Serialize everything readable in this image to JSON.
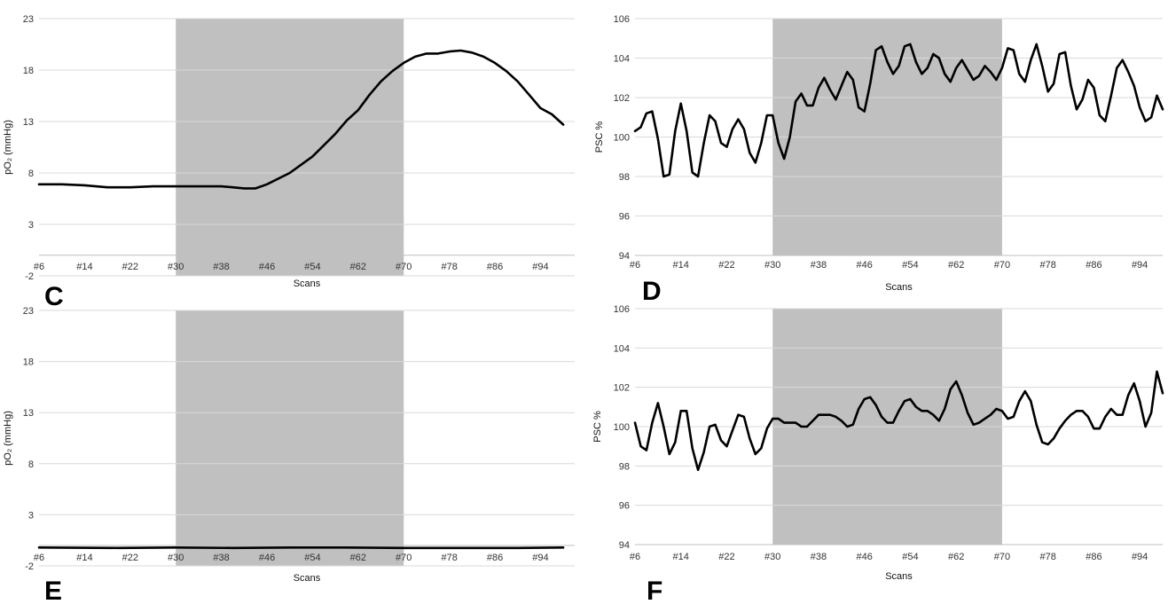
{
  "colors": {
    "shade": "#c0c0c0",
    "grid": "#d9d9d9",
    "line": "#000000",
    "background": "#ffffff"
  },
  "chart_data": [
    {
      "panel": "C",
      "type": "line",
      "grid": true,
      "legend": "none",
      "xlabel": "Scans",
      "ylabel": "pO₂ (mmHg)",
      "ylim": [
        -2,
        23
      ],
      "yticks": [
        -2,
        3,
        8,
        13,
        18,
        23
      ],
      "xlim": [
        6,
        100
      ],
      "xticks": [
        "#6",
        "#14",
        "#22",
        "#30",
        "#38",
        "#46",
        "#54",
        "#62",
        "#70",
        "#78",
        "#86",
        "#94"
      ],
      "shaded_x_range": [
        30,
        70
      ],
      "series": [
        {
          "x": [
            6,
            10,
            14,
            18,
            22,
            26,
            30,
            34,
            38,
            40,
            42,
            44,
            46,
            50,
            54,
            58,
            60,
            62,
            64,
            66,
            68,
            70,
            72,
            74,
            76,
            78,
            80,
            82,
            84,
            86,
            88,
            90,
            92,
            94,
            96,
            98
          ],
          "values": [
            6.9,
            6.9,
            6.8,
            6.6,
            6.6,
            6.7,
            6.7,
            6.7,
            6.7,
            6.6,
            6.5,
            6.5,
            6.9,
            8.0,
            9.6,
            11.8,
            13.1,
            14.1,
            15.6,
            16.9,
            17.9,
            18.7,
            19.3,
            19.6,
            19.6,
            19.8,
            19.9,
            19.7,
            19.3,
            18.7,
            17.9,
            16.9,
            15.6,
            14.3,
            13.7,
            12.7
          ]
        }
      ]
    },
    {
      "panel": "D",
      "type": "line",
      "grid": true,
      "legend": "none",
      "xlabel": "Scans",
      "ylabel": "PSC %",
      "ylim": [
        94,
        106
      ],
      "yticks": [
        94,
        96,
        98,
        100,
        102,
        104,
        106
      ],
      "xlim": [
        6,
        98
      ],
      "xticks": [
        "#6",
        "#14",
        "#22",
        "#30",
        "#38",
        "#46",
        "#54",
        "#62",
        "#70",
        "#78",
        "#86",
        "#94"
      ],
      "shaded_x_range": [
        30,
        70
      ],
      "series": [
        {
          "x": [
            6,
            7,
            8,
            9,
            10,
            11,
            12,
            13,
            14,
            15,
            16,
            17,
            18,
            19,
            20,
            21,
            22,
            23,
            24,
            25,
            26,
            27,
            28,
            29,
            30,
            31,
            32,
            33,
            34,
            35,
            36,
            37,
            38,
            39,
            40,
            41,
            42,
            43,
            44,
            45,
            46,
            47,
            48,
            49,
            50,
            51,
            52,
            53,
            54,
            55,
            56,
            57,
            58,
            59,
            60,
            61,
            62,
            63,
            64,
            65,
            66,
            67,
            68,
            69,
            70,
            71,
            72,
            73,
            74,
            75,
            76,
            77,
            78,
            79,
            80,
            81,
            82,
            83,
            84,
            85,
            86,
            87,
            88,
            89,
            90,
            91,
            92,
            93,
            94,
            95,
            96,
            97,
            98
          ],
          "values": [
            100.3,
            100.5,
            101.2,
            101.3,
            99.9,
            98.0,
            98.1,
            100.3,
            101.7,
            100.3,
            98.2,
            98.0,
            99.7,
            101.1,
            100.8,
            99.7,
            99.5,
            100.4,
            100.9,
            100.4,
            99.2,
            98.7,
            99.7,
            101.1,
            101.1,
            99.7,
            98.9,
            100.0,
            101.8,
            102.2,
            101.6,
            101.6,
            102.5,
            103.0,
            102.4,
            101.9,
            102.6,
            103.3,
            102.9,
            101.5,
            101.3,
            102.7,
            104.4,
            104.6,
            103.8,
            103.2,
            103.6,
            104.6,
            104.7,
            103.8,
            103.2,
            103.5,
            104.2,
            104.0,
            103.2,
            102.8,
            103.5,
            103.9,
            103.4,
            102.9,
            103.1,
            103.6,
            103.3,
            102.9,
            103.5,
            104.5,
            104.4,
            103.2,
            102.8,
            103.9,
            104.7,
            103.6,
            102.3,
            102.7,
            104.2,
            104.3,
            102.6,
            101.4,
            101.9,
            102.9,
            102.5,
            101.1,
            100.8,
            102.1,
            103.5,
            103.9,
            103.3,
            102.6,
            101.5,
            100.8,
            101.0,
            102.1,
            101.4
          ]
        }
      ]
    },
    {
      "panel": "E",
      "type": "line",
      "grid": true,
      "legend": "none",
      "xlabel": "Scans",
      "ylabel": "pO₂ (mmHg)",
      "ylim": [
        -2,
        23
      ],
      "yticks": [
        -2,
        3,
        8,
        13,
        18,
        23
      ],
      "xlim": [
        6,
        100
      ],
      "xticks": [
        "#6",
        "#14",
        "#22",
        "#30",
        "#38",
        "#46",
        "#54",
        "#62",
        "#70",
        "#78",
        "#86",
        "#94"
      ],
      "shaded_x_range": [
        30,
        70
      ],
      "series": [
        {
          "x": [
            6,
            20,
            30,
            40,
            50,
            60,
            70,
            80,
            90,
            98
          ],
          "values": [
            -0.2,
            -0.25,
            -0.2,
            -0.25,
            -0.2,
            -0.2,
            -0.25,
            -0.25,
            -0.25,
            -0.2
          ]
        }
      ]
    },
    {
      "panel": "F",
      "type": "line",
      "grid": true,
      "legend": "none",
      "xlabel": "Scans",
      "ylabel": "PSC %",
      "ylim": [
        94,
        106
      ],
      "yticks": [
        94,
        96,
        98,
        100,
        102,
        104,
        106
      ],
      "xlim": [
        6,
        98
      ],
      "xticks": [
        "#6",
        "#14",
        "#22",
        "#30",
        "#38",
        "#46",
        "#54",
        "#62",
        "#70",
        "#78",
        "#86",
        "#94"
      ],
      "shaded_x_range": [
        30,
        70
      ],
      "series": [
        {
          "x": [
            6,
            7,
            8,
            9,
            10,
            11,
            12,
            13,
            14,
            15,
            16,
            17,
            18,
            19,
            20,
            21,
            22,
            23,
            24,
            25,
            26,
            27,
            28,
            29,
            30,
            31,
            32,
            33,
            34,
            35,
            36,
            37,
            38,
            39,
            40,
            41,
            42,
            43,
            44,
            45,
            46,
            47,
            48,
            49,
            50,
            51,
            52,
            53,
            54,
            55,
            56,
            57,
            58,
            59,
            60,
            61,
            62,
            63,
            64,
            65,
            66,
            67,
            68,
            69,
            70,
            71,
            72,
            73,
            74,
            75,
            76,
            77,
            78,
            79,
            80,
            81,
            82,
            83,
            84,
            85,
            86,
            87,
            88,
            89,
            90,
            91,
            92,
            93,
            94,
            95,
            96,
            97,
            98
          ],
          "values": [
            100.2,
            99.0,
            98.8,
            100.2,
            101.2,
            100.0,
            98.6,
            99.2,
            100.8,
            100.8,
            98.9,
            97.8,
            98.7,
            100.0,
            100.1,
            99.3,
            99.0,
            99.8,
            100.6,
            100.5,
            99.4,
            98.6,
            98.9,
            99.9,
            100.4,
            100.4,
            100.2,
            100.2,
            100.2,
            100.0,
            100.0,
            100.3,
            100.6,
            100.6,
            100.6,
            100.5,
            100.3,
            100.0,
            100.1,
            100.9,
            101.4,
            101.5,
            101.1,
            100.5,
            100.2,
            100.2,
            100.8,
            101.3,
            101.4,
            101.0,
            100.8,
            100.8,
            100.6,
            100.3,
            100.9,
            101.9,
            102.3,
            101.6,
            100.7,
            100.1,
            100.2,
            100.4,
            100.6,
            100.9,
            100.8,
            100.4,
            100.5,
            101.3,
            101.8,
            101.3,
            100.1,
            99.2,
            99.1,
            99.4,
            99.9,
            100.3,
            100.6,
            100.8,
            100.8,
            100.5,
            99.9,
            99.9,
            100.5,
            100.9,
            100.6,
            100.6,
            101.6,
            102.2,
            101.3,
            100.0,
            100.7,
            102.8,
            101.7
          ]
        }
      ]
    }
  ]
}
